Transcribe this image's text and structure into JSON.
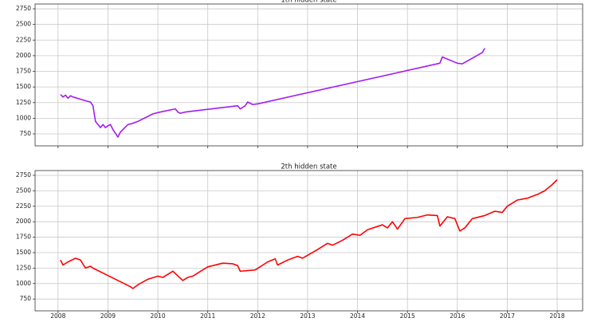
{
  "chart_data": [
    {
      "type": "line",
      "title": "1th hidden state",
      "color": "#a31cf0",
      "grid": true,
      "xlim": [
        2007.54,
        2018.51
      ],
      "ylim": [
        559,
        2827
      ],
      "yticks": [
        750,
        1000,
        1250,
        1500,
        1750,
        2000,
        2250,
        2500,
        2750
      ],
      "x": [
        2008.05,
        2008.1,
        2008.15,
        2008.2,
        2008.25,
        2008.3,
        2008.55,
        2008.65,
        2008.7,
        2008.75,
        2008.8,
        2008.85,
        2008.9,
        2008.95,
        2009.0,
        2009.05,
        2009.1,
        2009.15,
        2009.2,
        2009.25,
        2009.3,
        2009.4,
        2009.5,
        2009.6,
        2009.9,
        2010.05,
        2010.35,
        2010.4,
        2010.45,
        2010.55,
        2011.6,
        2011.65,
        2011.75,
        2011.8,
        2011.9,
        2012.0,
        2015.65,
        2015.7,
        2016.0,
        2016.1,
        2016.5,
        2016.55
      ],
      "values": [
        1380,
        1340,
        1370,
        1320,
        1360,
        1340,
        1280,
        1260,
        1200,
        950,
        900,
        850,
        900,
        850,
        880,
        900,
        820,
        760,
        700,
        780,
        820,
        900,
        920,
        950,
        1070,
        1100,
        1150,
        1100,
        1080,
        1100,
        1200,
        1150,
        1200,
        1260,
        1220,
        1230,
        1880,
        1980,
        1880,
        1870,
        2050,
        2120
      ]
    },
    {
      "type": "line",
      "title": "2th hidden state",
      "color": "#ff0000",
      "grid": true,
      "xlim": [
        2007.54,
        2018.51
      ],
      "ylim": [
        559,
        2827
      ],
      "xticks": [
        2008,
        2009,
        2010,
        2011,
        2012,
        2013,
        2014,
        2015,
        2016,
        2017,
        2018
      ],
      "yticks": [
        750,
        1000,
        1250,
        1500,
        1750,
        2000,
        2250,
        2500,
        2750
      ],
      "x": [
        2008.05,
        2008.1,
        2008.2,
        2008.35,
        2008.45,
        2008.55,
        2008.65,
        2008.7,
        2009.45,
        2009.5,
        2009.6,
        2009.8,
        2010.0,
        2010.1,
        2010.3,
        2010.5,
        2010.6,
        2010.7,
        2011.0,
        2011.3,
        2011.5,
        2011.6,
        2011.65,
        2011.95,
        2012.2,
        2012.35,
        2012.4,
        2012.6,
        2012.8,
        2012.9,
        2013.2,
        2013.4,
        2013.5,
        2013.7,
        2013.9,
        2014.05,
        2014.2,
        2014.5,
        2014.6,
        2014.7,
        2014.8,
        2014.95,
        2015.2,
        2015.4,
        2015.6,
        2015.65,
        2015.8,
        2015.95,
        2016.05,
        2016.15,
        2016.3,
        2016.55,
        2016.75,
        2016.9,
        2017.0,
        2017.2,
        2017.4,
        2017.6,
        2017.75,
        2017.9,
        2018.0
      ],
      "values": [
        1380,
        1300,
        1350,
        1410,
        1380,
        1250,
        1280,
        1250,
        950,
        920,
        980,
        1070,
        1120,
        1100,
        1200,
        1050,
        1100,
        1120,
        1270,
        1330,
        1320,
        1290,
        1200,
        1220,
        1350,
        1400,
        1300,
        1380,
        1440,
        1410,
        1550,
        1650,
        1620,
        1700,
        1800,
        1780,
        1870,
        1950,
        1900,
        2000,
        1880,
        2050,
        2070,
        2110,
        2100,
        1930,
        2080,
        2050,
        1850,
        1900,
        2050,
        2100,
        2170,
        2150,
        2250,
        2350,
        2380,
        2440,
        2500,
        2600,
        2680
      ]
    }
  ]
}
